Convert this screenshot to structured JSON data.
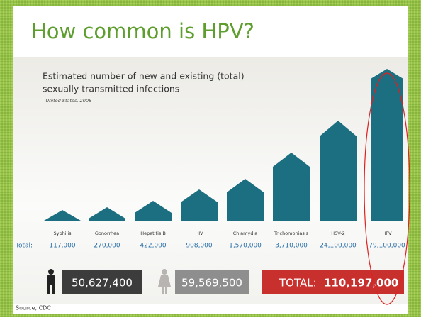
{
  "slide": {
    "title": "How common is HPV?",
    "source": "Source, CDC"
  },
  "infographic": {
    "title_line1": "Estimated number of new and existing (total)",
    "title_line2": "sexually transmitted infections",
    "subtitle": "- United States, 2008",
    "total_label": "Total:",
    "items": [
      {
        "name": "Syphilis",
        "total": "117,000"
      },
      {
        "name": "Gonorrhea",
        "total": "270,000"
      },
      {
        "name": "Hepatitis B",
        "total": "422,000"
      },
      {
        "name": "HIV",
        "total": "908,000"
      },
      {
        "name": "Chlamydia",
        "total": "1,570,000"
      },
      {
        "name": "Trichomoniasis",
        "total": "3,710,000"
      },
      {
        "name": "HSV-2",
        "total": "24,100,000"
      },
      {
        "name": "HPV",
        "total": "79,100,000"
      }
    ],
    "male_total": "50,627,400",
    "female_total": "59,569,500",
    "grand_total_label": "TOTAL:",
    "grand_total": "110,197,000"
  }
}
